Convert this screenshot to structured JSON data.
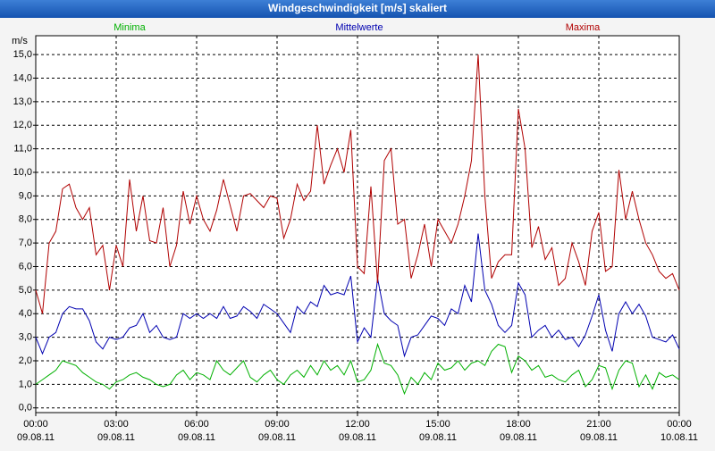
{
  "chart_data": {
    "type": "line",
    "title": "Windgeschwindigkeit [m/s] skaliert",
    "y_label": "m/s",
    "x": [
      0,
      0.25,
      0.5,
      0.75,
      1,
      1.25,
      1.5,
      1.75,
      2,
      2.25,
      2.5,
      2.75,
      3,
      3.25,
      3.5,
      3.75,
      4,
      4.25,
      4.5,
      4.75,
      5,
      5.25,
      5.5,
      5.75,
      6,
      6.25,
      6.5,
      6.75,
      7,
      7.25,
      7.5,
      7.75,
      8,
      8.25,
      8.5,
      8.75,
      9,
      9.25,
      9.5,
      9.75,
      10,
      10.25,
      10.5,
      10.75,
      11,
      11.25,
      11.5,
      11.75,
      12,
      12.25,
      12.5,
      12.75,
      13,
      13.25,
      13.5,
      13.75,
      14,
      14.25,
      14.5,
      14.75,
      15,
      15.25,
      15.5,
      15.75,
      16,
      16.25,
      16.5,
      16.75,
      17,
      17.25,
      17.5,
      17.75,
      18,
      18.25,
      18.5,
      18.75,
      19,
      19.25,
      19.5,
      19.75,
      20,
      20.25,
      20.5,
      20.75,
      21,
      21.25,
      21.5,
      21.75,
      22,
      22.25,
      22.5,
      22.75,
      23,
      23.25,
      23.5,
      23.75,
      24
    ],
    "series": [
      {
        "name": "Minima",
        "color": "#00b000",
        "values": [
          1.0,
          1.2,
          1.4,
          1.6,
          2.0,
          1.9,
          1.8,
          1.5,
          1.3,
          1.1,
          1.0,
          0.8,
          1.1,
          1.2,
          1.4,
          1.5,
          1.3,
          1.2,
          1.0,
          0.9,
          1.0,
          1.4,
          1.6,
          1.2,
          1.5,
          1.4,
          1.2,
          2.0,
          1.6,
          1.4,
          1.7,
          2.0,
          1.3,
          1.1,
          1.4,
          1.6,
          1.2,
          1.0,
          1.4,
          1.6,
          1.3,
          1.8,
          1.4,
          2.0,
          1.6,
          1.8,
          1.4,
          2.0,
          1.1,
          1.2,
          1.6,
          2.7,
          1.9,
          1.8,
          1.4,
          0.6,
          1.3,
          1.0,
          1.5,
          1.2,
          1.9,
          1.6,
          1.7,
          2.0,
          1.6,
          1.9,
          2.0,
          1.8,
          2.4,
          2.7,
          2.6,
          1.5,
          2.2,
          2.0,
          1.6,
          1.8,
          1.3,
          1.4,
          1.2,
          1.1,
          1.4,
          1.6,
          0.9,
          1.2,
          1.8,
          1.7,
          0.8,
          1.6,
          2.0,
          1.9,
          0.9,
          1.4,
          0.8,
          1.5,
          1.3,
          1.4,
          1.2
        ]
      },
      {
        "name": "Mittelwerte",
        "color": "#0000b0",
        "values": [
          3.0,
          2.3,
          3.0,
          3.2,
          4.0,
          4.3,
          4.2,
          4.2,
          3.7,
          2.8,
          2.5,
          3.0,
          2.9,
          3.0,
          3.4,
          3.5,
          4.0,
          3.2,
          3.5,
          3.0,
          2.9,
          3.0,
          4.0,
          3.8,
          4.0,
          3.8,
          4.0,
          3.8,
          4.3,
          3.8,
          3.9,
          4.3,
          4.1,
          3.8,
          4.4,
          4.2,
          4.0,
          3.6,
          3.2,
          4.3,
          4.0,
          4.5,
          4.3,
          5.2,
          4.8,
          4.9,
          4.8,
          5.6,
          2.8,
          3.4,
          3.0,
          5.5,
          4.0,
          3.7,
          3.5,
          2.2,
          3.0,
          3.1,
          3.5,
          3.9,
          3.8,
          3.5,
          4.2,
          4.0,
          5.2,
          4.5,
          7.4,
          5.0,
          4.4,
          3.5,
          3.2,
          3.5,
          5.3,
          4.8,
          3.0,
          3.3,
          3.5,
          3.0,
          3.3,
          2.9,
          3.0,
          2.6,
          3.1,
          3.9,
          4.8,
          3.3,
          2.4,
          4.0,
          4.5,
          4.0,
          4.4,
          3.9,
          3.0,
          2.9,
          2.8,
          3.1,
          2.5
        ]
      },
      {
        "name": "Maxima",
        "color": "#b00000",
        "values": [
          5.0,
          4.0,
          7.0,
          7.5,
          9.3,
          9.5,
          8.5,
          8.0,
          8.5,
          6.5,
          6.9,
          5.0,
          6.9,
          6.0,
          9.7,
          7.5,
          9.0,
          7.1,
          7.0,
          8.5,
          6.0,
          6.9,
          9.2,
          7.8,
          9.0,
          8.0,
          7.5,
          8.4,
          9.7,
          8.6,
          7.5,
          9.0,
          9.1,
          8.8,
          8.5,
          9.0,
          8.9,
          7.2,
          8.0,
          9.5,
          8.8,
          9.2,
          12.0,
          9.5,
          10.3,
          11.0,
          10.0,
          11.8,
          6.0,
          5.7,
          9.4,
          5.3,
          10.5,
          11.0,
          7.8,
          8.0,
          5.5,
          6.5,
          7.8,
          6.0,
          8.0,
          7.5,
          7.0,
          7.8,
          9.0,
          10.5,
          15.0,
          9.0,
          5.5,
          6.2,
          6.5,
          6.5,
          12.7,
          11.0,
          6.8,
          7.7,
          6.3,
          6.8,
          5.2,
          5.5,
          7.0,
          6.2,
          5.2,
          7.5,
          8.3,
          5.8,
          6.0,
          10.1,
          8.0,
          9.2,
          8.0,
          7.0,
          6.5,
          5.8,
          5.5,
          5.7,
          5.0
        ]
      }
    ],
    "xlim": [
      0,
      24
    ],
    "ylim": [
      -0.2,
      15.8
    ],
    "xticks": [
      {
        "value": 0,
        "label": "00:00",
        "date": "09.08.11"
      },
      {
        "value": 3,
        "label": "03:00",
        "date": "09.08.11"
      },
      {
        "value": 6,
        "label": "06:00",
        "date": "09.08.11"
      },
      {
        "value": 9,
        "label": "09:00",
        "date": "09.08.11"
      },
      {
        "value": 12,
        "label": "12:00",
        "date": "09.08.11"
      },
      {
        "value": 15,
        "label": "15:00",
        "date": "09.08.11"
      },
      {
        "value": 18,
        "label": "18:00",
        "date": "09.08.11"
      },
      {
        "value": 21,
        "label": "21:00",
        "date": "09.08.11"
      },
      {
        "value": 24,
        "label": "00:00",
        "date": "10.08.11"
      }
    ],
    "yticks": [
      {
        "value": 0,
        "label": "0,0"
      },
      {
        "value": 1,
        "label": "1,0"
      },
      {
        "value": 2,
        "label": "2,0"
      },
      {
        "value": 3,
        "label": "3,0"
      },
      {
        "value": 4,
        "label": "4,0"
      },
      {
        "value": 5,
        "label": "5,0"
      },
      {
        "value": 6,
        "label": "6,0"
      },
      {
        "value": 7,
        "label": "7,0"
      },
      {
        "value": 8,
        "label": "8,0"
      },
      {
        "value": 9,
        "label": "9,0"
      },
      {
        "value": 10,
        "label": "10,0"
      },
      {
        "value": 11,
        "label": "11,0"
      },
      {
        "value": 12,
        "label": "12,0"
      },
      {
        "value": 13,
        "label": "13,0"
      },
      {
        "value": 14,
        "label": "14,0"
      },
      {
        "value": 15,
        "label": "15,0"
      }
    ],
    "grid": true
  }
}
